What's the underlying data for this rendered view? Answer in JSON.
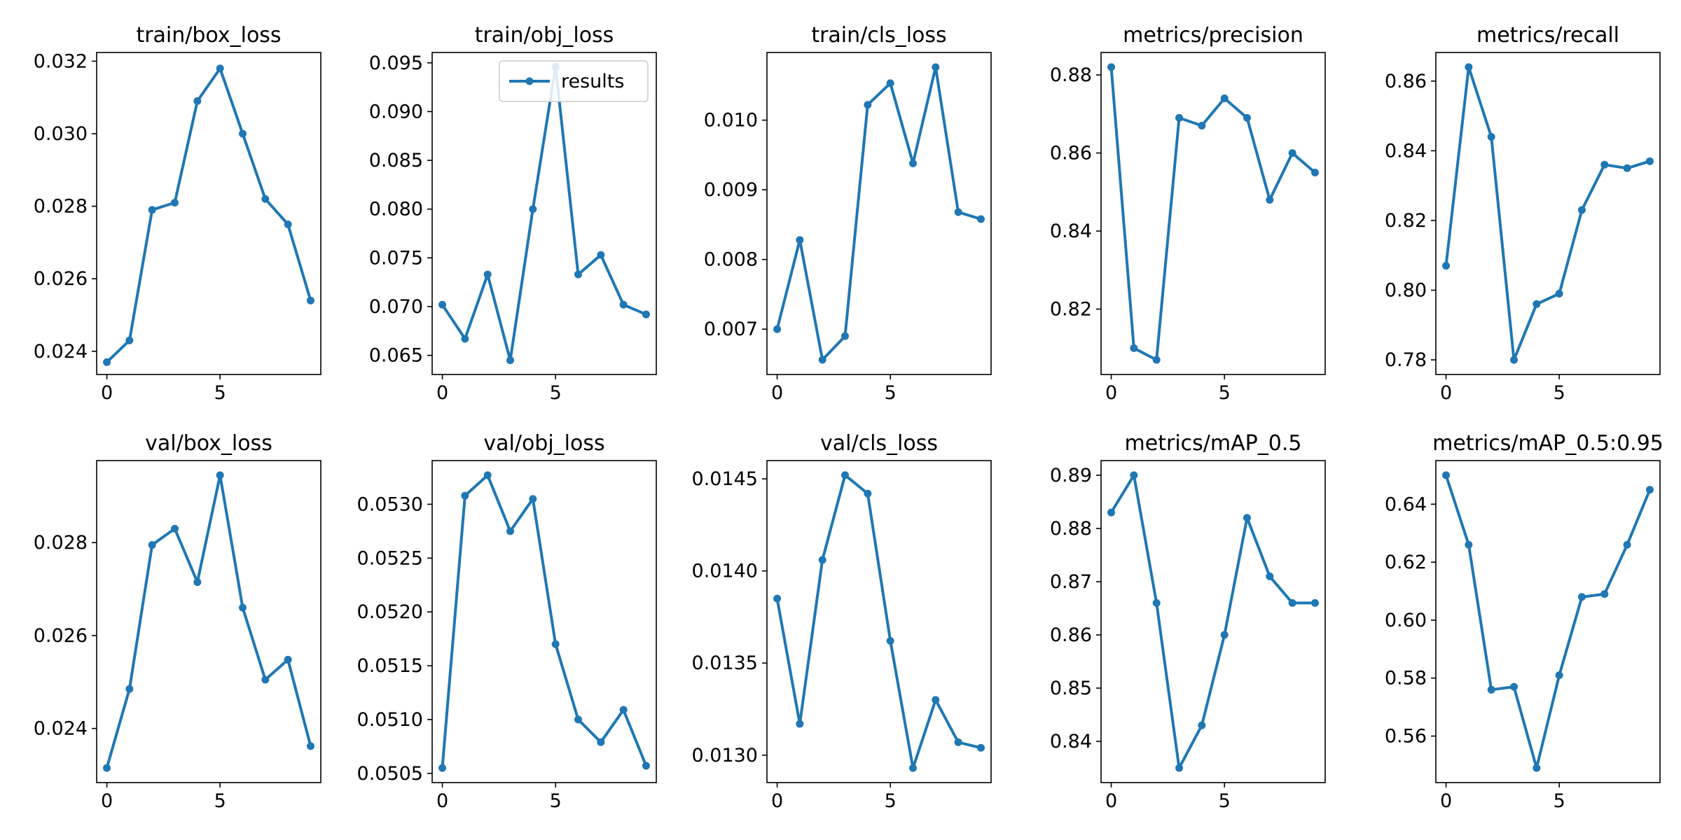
{
  "style": {
    "line_color": "#1f77b4",
    "frame_color": "#000000",
    "background": "#ffffff"
  },
  "chart_data": [
    {
      "type": "line",
      "title": "train/box_loss",
      "x": [
        0,
        1,
        2,
        3,
        4,
        5,
        6,
        7,
        8,
        9
      ],
      "y": [
        0.0237,
        0.0243,
        0.0279,
        0.0281,
        0.0309,
        0.0318,
        0.03,
        0.0282,
        0.0275,
        0.0254
      ],
      "xlim": [
        -0.45,
        9.45
      ],
      "ylim": [
        0.02336,
        0.03224
      ],
      "xticks": [
        0,
        5
      ],
      "yticks": [
        0.024,
        0.026,
        0.028,
        0.03,
        0.032
      ],
      "ytick_labels": [
        "0.024",
        "0.026",
        "0.028",
        "0.030",
        "0.032"
      ]
    },
    {
      "type": "line",
      "title": "train/obj_loss",
      "x": [
        0,
        1,
        2,
        3,
        4,
        5,
        6,
        7,
        8,
        9
      ],
      "y": [
        0.0702,
        0.0667,
        0.0733,
        0.0645,
        0.08,
        0.0946,
        0.0733,
        0.0753,
        0.0702,
        0.0692
      ],
      "xlim": [
        -0.45,
        9.45
      ],
      "ylim": [
        0.06304,
        0.09606
      ],
      "xticks": [
        0,
        5
      ],
      "yticks": [
        0.065,
        0.07,
        0.075,
        0.08,
        0.085,
        0.09,
        0.095
      ],
      "ytick_labels": [
        "0.065",
        "0.070",
        "0.075",
        "0.080",
        "0.085",
        "0.090",
        "0.095"
      ],
      "legend": {
        "entries": [
          "results"
        ],
        "placement": "upper-right"
      }
    },
    {
      "type": "line",
      "title": "train/cls_loss",
      "x": [
        0,
        1,
        2,
        3,
        4,
        5,
        6,
        7,
        8,
        9
      ],
      "y": [
        0.007,
        0.00828,
        0.00656,
        0.0069,
        0.01022,
        0.01053,
        0.00938,
        0.01076,
        0.00868,
        0.00858
      ],
      "xlim": [
        -0.45,
        9.45
      ],
      "ylim": [
        0.006349,
        0.010971
      ],
      "xticks": [
        0,
        5
      ],
      "yticks": [
        0.007,
        0.008,
        0.009,
        0.01
      ],
      "ytick_labels": [
        "0.007",
        "0.008",
        "0.009",
        "0.010"
      ]
    },
    {
      "type": "line",
      "title": "metrics/precision",
      "x": [
        0,
        1,
        2,
        3,
        4,
        5,
        6,
        7,
        8,
        9
      ],
      "y": [
        0.882,
        0.81,
        0.807,
        0.869,
        0.867,
        0.874,
        0.869,
        0.848,
        0.86,
        0.855
      ],
      "xlim": [
        -0.45,
        9.45
      ],
      "ylim": [
        0.80325,
        0.88575
      ],
      "xticks": [
        0,
        5
      ],
      "yticks": [
        0.82,
        0.84,
        0.86,
        0.88
      ],
      "ytick_labels": [
        "0.82",
        "0.84",
        "0.86",
        "0.88"
      ]
    },
    {
      "type": "line",
      "title": "metrics/recall",
      "x": [
        0,
        1,
        2,
        3,
        4,
        5,
        6,
        7,
        8,
        9
      ],
      "y": [
        0.807,
        0.864,
        0.844,
        0.78,
        0.796,
        0.799,
        0.823,
        0.836,
        0.835,
        0.837
      ],
      "xlim": [
        -0.45,
        9.45
      ],
      "ylim": [
        0.7758,
        0.8682
      ],
      "xticks": [
        0,
        5
      ],
      "yticks": [
        0.78,
        0.8,
        0.82,
        0.84,
        0.86
      ],
      "ytick_labels": [
        "0.78",
        "0.80",
        "0.82",
        "0.84",
        "0.86"
      ]
    },
    {
      "type": "line",
      "title": "val/box_loss",
      "x": [
        0,
        1,
        2,
        3,
        4,
        5,
        6,
        7,
        8,
        9
      ],
      "y": [
        0.02315,
        0.02485,
        0.02795,
        0.0283,
        0.02715,
        0.02945,
        0.0266,
        0.02505,
        0.02548,
        0.02362
      ],
      "xlim": [
        -0.45,
        9.45
      ],
      "ylim": [
        0.022835,
        0.029765
      ],
      "xticks": [
        0,
        5
      ],
      "yticks": [
        0.024,
        0.026,
        0.028
      ],
      "ytick_labels": [
        "0.024",
        "0.026",
        "0.028"
      ]
    },
    {
      "type": "line",
      "title": "val/obj_loss",
      "x": [
        0,
        1,
        2,
        3,
        4,
        5,
        6,
        7,
        8,
        9
      ],
      "y": [
        0.05055,
        0.05308,
        0.05327,
        0.05275,
        0.05305,
        0.0517,
        0.051,
        0.05079,
        0.05109,
        0.05057
      ],
      "xlim": [
        -0.45,
        9.45
      ],
      "ylim": [
        0.050414,
        0.053406
      ],
      "xticks": [
        0,
        5
      ],
      "yticks": [
        0.0505,
        0.051,
        0.0515,
        0.052,
        0.0525,
        0.053
      ],
      "ytick_labels": [
        "0.0505",
        "0.0510",
        "0.0515",
        "0.0520",
        "0.0525",
        "0.0530"
      ]
    },
    {
      "type": "line",
      "title": "val/cls_loss",
      "x": [
        0,
        1,
        2,
        3,
        4,
        5,
        6,
        7,
        8,
        9
      ],
      "y": [
        0.01385,
        0.01317,
        0.01406,
        0.01452,
        0.01442,
        0.01362,
        0.01293,
        0.0133,
        0.01307,
        0.01304
      ],
      "xlim": [
        -0.45,
        9.45
      ],
      "ylim": [
        0.012851,
        0.014599
      ],
      "xticks": [
        0,
        5
      ],
      "yticks": [
        0.013,
        0.0135,
        0.014,
        0.0145
      ],
      "ytick_labels": [
        "0.0130",
        "0.0135",
        "0.0140",
        "0.0145"
      ]
    },
    {
      "type": "line",
      "title": "metrics/mAP_0.5",
      "x": [
        0,
        1,
        2,
        3,
        4,
        5,
        6,
        7,
        8,
        9
      ],
      "y": [
        0.883,
        0.89,
        0.866,
        0.835,
        0.843,
        0.86,
        0.882,
        0.871,
        0.866,
        0.866
      ],
      "xlim": [
        -0.45,
        9.45
      ],
      "ylim": [
        0.83225,
        0.89275
      ],
      "xticks": [
        0,
        5
      ],
      "yticks": [
        0.84,
        0.85,
        0.86,
        0.87,
        0.88,
        0.89
      ],
      "ytick_labels": [
        "0.84",
        "0.85",
        "0.86",
        "0.87",
        "0.88",
        "0.89"
      ]
    },
    {
      "type": "line",
      "title": "metrics/mAP_0.5:0.95",
      "x": [
        0,
        1,
        2,
        3,
        4,
        5,
        6,
        7,
        8,
        9
      ],
      "y": [
        0.65,
        0.626,
        0.576,
        0.577,
        0.549,
        0.581,
        0.608,
        0.609,
        0.626,
        0.645
      ],
      "xlim": [
        -0.45,
        9.45
      ],
      "ylim": [
        0.54395,
        0.65505
      ],
      "xticks": [
        0,
        5
      ],
      "yticks": [
        0.56,
        0.58,
        0.6,
        0.62,
        0.64
      ],
      "ytick_labels": [
        "0.56",
        "0.58",
        "0.60",
        "0.62",
        "0.64"
      ]
    }
  ]
}
